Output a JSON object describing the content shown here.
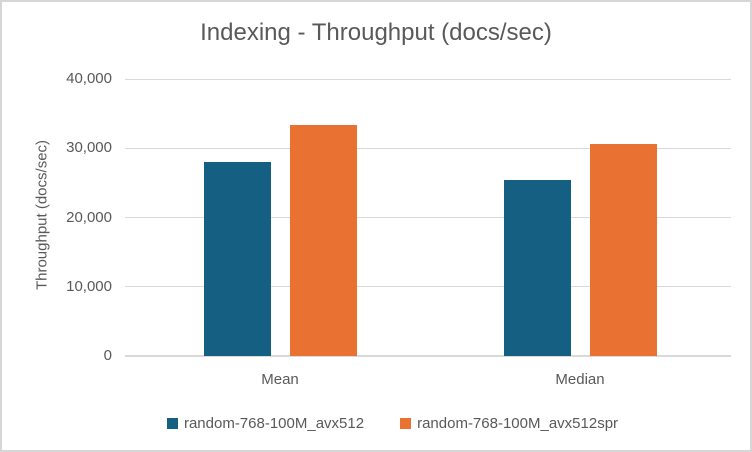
{
  "chart_data": {
    "type": "bar",
    "title": "Indexing - Throughput (docs/sec)",
    "xlabel": "",
    "ylabel": "Throughput (docs/sec)",
    "categories": [
      "Mean",
      "Median"
    ],
    "series": [
      {
        "name": "random-768-100M_avx512",
        "color": "#156082",
        "values": [
          28000,
          25400
        ]
      },
      {
        "name": "random-768-100M_avx512spr",
        "color": "#e97132",
        "values": [
          33400,
          30600
        ]
      }
    ],
    "ylim": [
      0,
      40000
    ],
    "yticks": [
      0,
      10000,
      20000,
      30000,
      40000
    ],
    "ytick_labels": [
      "0",
      "10,000",
      "20,000",
      "30,000",
      "40,000"
    ],
    "grid": true,
    "legend_position": "bottom"
  },
  "colors": {
    "text": "#595959",
    "gridline": "#d9d9d9",
    "axis_line": "#d9d9d9",
    "border": "#d6d6d6",
    "background": "#ffffff"
  }
}
